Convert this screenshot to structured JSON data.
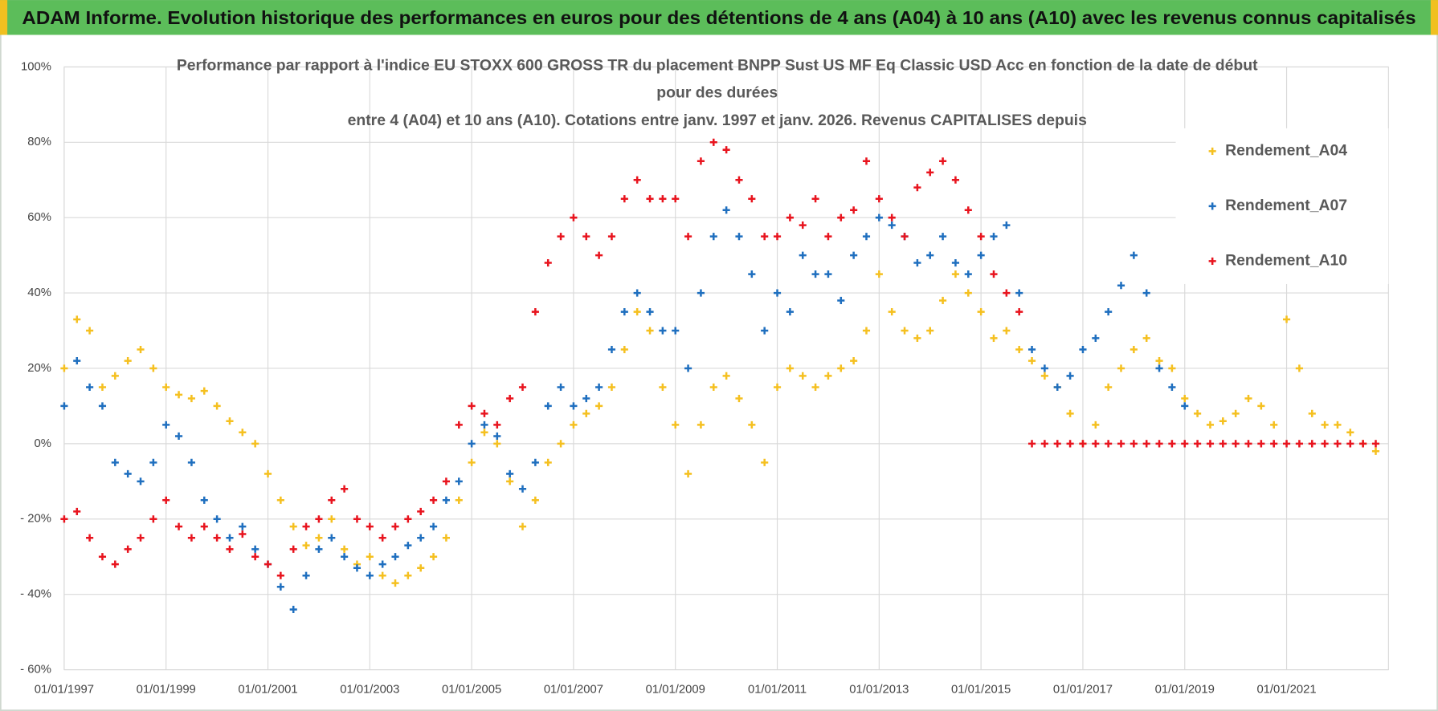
{
  "banner": "ADAM Informe. Evolution historique des performances en euros pour des détentions de 4 ans (A04) à 10 ans (A10) avec les revenus connus capitalisés",
  "chart_data": {
    "type": "scatter",
    "title": [
      "Performance par rapport à l'indice EU STOXX 600 GROSS TR  du placement BNPP Sust US MF Eq Classic USD Acc en fonction de la date de début",
      "pour des durées",
      "entre 4 (A04) et 10 ans (A10).  Cotations entre janv. 1997 et janv. 2026. Revenus CAPITALISES depuis"
    ],
    "x": [
      "1997-01-01",
      "1997-04-01",
      "1997-07-01",
      "1997-10-01",
      "1998-01-01",
      "1998-04-01",
      "1998-07-01",
      "1998-10-01",
      "1999-01-01",
      "1999-04-01",
      "1999-07-01",
      "1999-10-01",
      "2000-01-01",
      "2000-04-01",
      "2000-07-01",
      "2000-10-01",
      "2001-01-01",
      "2001-04-01",
      "2001-07-01",
      "2001-10-01",
      "2002-01-01",
      "2002-04-01",
      "2002-07-01",
      "2002-10-01",
      "2003-01-01",
      "2003-04-01",
      "2003-07-01",
      "2003-10-01",
      "2004-01-01",
      "2004-04-01",
      "2004-07-01",
      "2004-10-01",
      "2005-01-01",
      "2005-04-01",
      "2005-07-01",
      "2005-10-01",
      "2006-01-01",
      "2006-04-01",
      "2006-07-01",
      "2006-10-01",
      "2007-01-01",
      "2007-04-01",
      "2007-07-01",
      "2007-10-01",
      "2008-01-01",
      "2008-04-01",
      "2008-07-01",
      "2008-10-01",
      "2009-01-01",
      "2009-04-01",
      "2009-07-01",
      "2009-10-01",
      "2010-01-01",
      "2010-04-01",
      "2010-07-01",
      "2010-10-01",
      "2011-01-01",
      "2011-04-01",
      "2011-07-01",
      "2011-10-01",
      "2012-01-01",
      "2012-04-01",
      "2012-07-01",
      "2012-10-01",
      "2013-01-01",
      "2013-04-01",
      "2013-07-01",
      "2013-10-01",
      "2014-01-01",
      "2014-04-01",
      "2014-07-01",
      "2014-10-01",
      "2015-01-01",
      "2015-04-01",
      "2015-07-01",
      "2015-10-01",
      "2016-01-01",
      "2016-04-01",
      "2016-07-01",
      "2016-10-01",
      "2017-01-01",
      "2017-04-01",
      "2017-07-01",
      "2017-10-01",
      "2018-01-01",
      "2018-04-01",
      "2018-07-01",
      "2018-10-01",
      "2019-01-01",
      "2019-04-01",
      "2019-07-01",
      "2019-10-01",
      "2020-01-01",
      "2020-04-01",
      "2020-07-01",
      "2020-10-01",
      "2021-01-01",
      "2021-04-01",
      "2021-07-01",
      "2021-10-01",
      "2022-01-01",
      "2022-04-01",
      "2022-07-01",
      "2022-10-01"
    ],
    "series": [
      {
        "name": "Rendement_A04",
        "color": "#f5c020",
        "values": [
          20,
          33,
          30,
          15,
          18,
          22,
          25,
          20,
          15,
          13,
          12,
          14,
          10,
          6,
          3,
          0,
          -8,
          -15,
          -22,
          -27,
          -25,
          -20,
          -28,
          -32,
          -30,
          -35,
          -37,
          -35,
          -33,
          -30,
          -25,
          -15,
          -5,
          3,
          0,
          -10,
          -22,
          -15,
          -5,
          0,
          5,
          8,
          10,
          15,
          25,
          35,
          30,
          15,
          5,
          -8,
          5,
          15,
          18,
          12,
          5,
          -5,
          15,
          20,
          18,
          15,
          18,
          20,
          22,
          30,
          45,
          35,
          30,
          28,
          30,
          38,
          45,
          40,
          35,
          28,
          30,
          25,
          22,
          18,
          15,
          8,
          0,
          5,
          15,
          20,
          25,
          28,
          22,
          20,
          12,
          8,
          5,
          6,
          8,
          12,
          10,
          5,
          33,
          20,
          8,
          5,
          5,
          3,
          0,
          -2
        ]
      },
      {
        "name": "Rendement_A07",
        "color": "#1f6fbf",
        "values": [
          10,
          22,
          15,
          10,
          -5,
          -8,
          -10,
          -5,
          5,
          2,
          -5,
          -15,
          -20,
          -25,
          -22,
          -28,
          -32,
          -38,
          -44,
          -35,
          -28,
          -25,
          -30,
          -33,
          -35,
          -32,
          -30,
          -27,
          -25,
          -22,
          -15,
          -10,
          0,
          5,
          2,
          -8,
          -12,
          -5,
          10,
          15,
          10,
          12,
          15,
          25,
          35,
          40,
          35,
          30,
          30,
          20,
          40,
          55,
          62,
          55,
          45,
          30,
          40,
          35,
          50,
          45,
          45,
          38,
          50,
          55,
          60,
          58,
          55,
          48,
          50,
          55,
          48,
          45,
          50,
          55,
          58,
          40,
          25,
          20,
          15,
          18,
          25,
          28,
          35,
          42,
          50,
          40,
          20,
          15,
          10,
          null,
          null,
          null,
          null,
          null,
          null,
          null,
          null,
          null,
          null,
          null,
          null,
          null,
          null,
          null
        ]
      },
      {
        "name": "Rendement_A10",
        "color": "#e8141e",
        "values": [
          -20,
          -18,
          -25,
          -30,
          -32,
          -28,
          -25,
          -20,
          -15,
          -22,
          -25,
          -22,
          -25,
          -28,
          -24,
          -30,
          -32,
          -35,
          -28,
          -22,
          -20,
          -15,
          -12,
          -20,
          -22,
          -25,
          -22,
          -20,
          -18,
          -15,
          -10,
          5,
          10,
          8,
          5,
          12,
          15,
          35,
          48,
          55,
          60,
          55,
          50,
          55,
          65,
          70,
          65,
          65,
          65,
          55,
          75,
          80,
          78,
          70,
          65,
          55,
          55,
          60,
          58,
          65,
          55,
          60,
          62,
          75,
          65,
          60,
          55,
          68,
          72,
          75,
          70,
          62,
          55,
          45,
          40,
          35,
          0,
          0,
          0,
          0,
          0,
          0,
          0,
          0,
          0,
          0,
          0,
          0,
          0,
          0,
          0,
          0,
          0,
          0,
          0,
          0,
          0,
          0,
          0,
          0,
          0,
          0,
          0,
          0
        ]
      }
    ],
    "xlim": [
      "1997-01-01",
      "2023-01-01"
    ],
    "xticks": [
      {
        "value": "1997-01-01",
        "label": "01/01/1997"
      },
      {
        "value": "1999-01-01",
        "label": "01/01/1999"
      },
      {
        "value": "2001-01-01",
        "label": "01/01/2001"
      },
      {
        "value": "2003-01-01",
        "label": "01/01/2003"
      },
      {
        "value": "2005-01-01",
        "label": "01/01/2005"
      },
      {
        "value": "2007-01-01",
        "label": "01/01/2007"
      },
      {
        "value": "2009-01-01",
        "label": "01/01/2009"
      },
      {
        "value": "2011-01-01",
        "label": "01/01/2011"
      },
      {
        "value": "2013-01-01",
        "label": "01/01/2013"
      },
      {
        "value": "2015-01-01",
        "label": "01/01/2015"
      },
      {
        "value": "2017-01-01",
        "label": "01/01/2017"
      },
      {
        "value": "2019-01-01",
        "label": "01/01/2019"
      },
      {
        "value": "2021-01-01",
        "label": "01/01/2021"
      }
    ],
    "ylim": [
      -60,
      100
    ],
    "yticks": [
      {
        "value": -60,
        "label": "- 60%"
      },
      {
        "value": -40,
        "label": "- 40%"
      },
      {
        "value": -20,
        "label": "- 20%"
      },
      {
        "value": 0,
        "label": "0%"
      },
      {
        "value": 20,
        "label": "20%"
      },
      {
        "value": 40,
        "label": "40%"
      },
      {
        "value": 60,
        "label": "60%"
      },
      {
        "value": 80,
        "label": "80%"
      },
      {
        "value": 100,
        "label": "100%"
      }
    ],
    "grid": true,
    "legend": "upper right"
  }
}
